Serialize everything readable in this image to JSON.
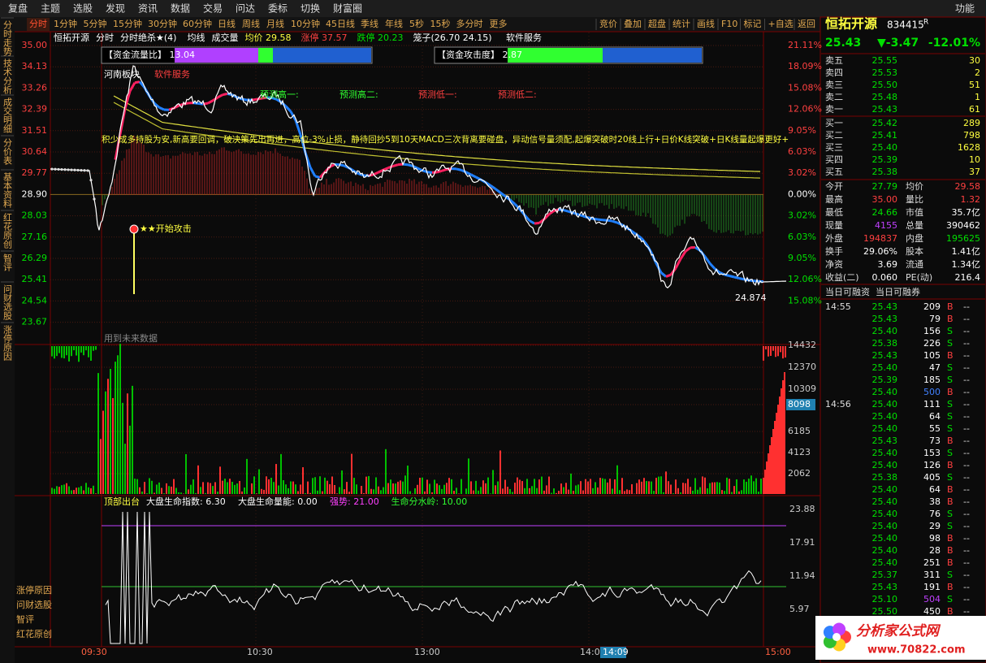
{
  "menu": [
    "复盘",
    "主题",
    "选股",
    "发现",
    "资讯",
    "数据",
    "交易",
    "问达",
    "委标",
    "切换",
    "财富圈"
  ],
  "menu_right": "功能",
  "periods": [
    "分时",
    "1分钟",
    "5分钟",
    "15分钟",
    "30分钟",
    "60分钟",
    "日线",
    "周线",
    "月线",
    "10分钟",
    "45日线",
    "季线",
    "年线",
    "5秒",
    "15秒",
    "多分时",
    "更多"
  ],
  "toolbar": [
    "竞价",
    "叠加",
    "超盘",
    "统计",
    "画线",
    "F10",
    "标记",
    "+自选",
    "返回"
  ],
  "sidebar": [
    "分时走势",
    "技术分析",
    "成交明细",
    "分价表",
    "基本资料",
    "红花原创",
    "智评",
    "问财选股",
    "涨停原因"
  ],
  "sidebar_bottom": [
    "涨停原因",
    "问财选股",
    "智评",
    "红花原创"
  ],
  "chart": {
    "header": [
      "恒拓开源",
      "分时",
      "分时绝杀★(4)",
      "均线",
      "成交量",
      "均价 29.58",
      "涨停 37.57",
      "跌停 20.23",
      "笼子(26.70 24.15)",
      "软件服务"
    ],
    "price_axis": [
      "35.00",
      "34.13",
      "33.26",
      "32.39",
      "31.51",
      "30.64",
      "29.77",
      "28.90",
      "28.03",
      "27.16",
      "26.29",
      "25.41",
      "24.54",
      "23.67"
    ],
    "percent_axis": [
      "21.11%",
      "18.09%",
      "15.08%",
      "12.06%",
      "9.05%",
      "6.03%",
      "3.02%",
      "0.00%",
      "3.02%",
      "6.03%",
      "9.05%",
      "12.06%",
      "15.08%"
    ],
    "flow_box": "【资金流量比】 13.04",
    "attack_box": "【资金攻击度】 2.87",
    "sector": "河南板块",
    "industry": "软件服务",
    "forecasts": [
      "预测高一:",
      "预测高二:",
      "预测低一:",
      "预测低二:"
    ],
    "strategy": "积少成多持股为安,新高要回调，破决策先出再进，高位-3%止损，静待回抄5到10天MACD三次背离要碰盘，异动信号量须配,起爆突破时20线上行+日价K线突破+日K线量起爆更好+",
    "attack": "★★开始攻击",
    "low_mark": "24.874",
    "volume_note": "用到未来数据",
    "volume_axis": [
      "14432",
      "12370",
      "10309",
      "8098",
      "6185",
      "4123",
      "2062"
    ],
    "indicator_header": [
      "顶部出台",
      "大盘生命指数: 6.30",
      "大盘生命量能: 0.00",
      "强势: 21.00",
      "生命分水岭: 10.00"
    ],
    "indicator_axis": [
      "23.88",
      "17.91",
      "11.94",
      "5.97"
    ],
    "times": [
      "09:30",
      "10:30",
      "13:00",
      "14:00",
      "14:09",
      "15:00"
    ]
  },
  "quote": {
    "name": "恒拓开源",
    "code": "834415",
    "flag": "R",
    "price": "25.43",
    "change": "▼-3.47",
    "change_pct": "-12.01%",
    "sell": [
      [
        "卖五",
        "25.55",
        "30"
      ],
      [
        "卖四",
        "25.53",
        "2"
      ],
      [
        "卖三",
        "25.50",
        "51"
      ],
      [
        "卖二",
        "25.48",
        "1"
      ],
      [
        "卖一",
        "25.43",
        "61"
      ]
    ],
    "buy": [
      [
        "买一",
        "25.42",
        "289"
      ],
      [
        "买二",
        "25.41",
        "798"
      ],
      [
        "买三",
        "25.40",
        "1628"
      ],
      [
        "买四",
        "25.39",
        "10"
      ],
      [
        "买五",
        "25.38",
        "37"
      ]
    ],
    "stats": [
      [
        {
          "label": "今开",
          "value": "27.79",
          "color": "#00e000"
        },
        {
          "label": "均价",
          "value": "29.58",
          "color": "#ff4040"
        }
      ],
      [
        {
          "label": "最高",
          "value": "35.00",
          "color": "#ff4040"
        },
        {
          "label": "量比",
          "value": "1.32",
          "color": "#ff4040"
        }
      ],
      [
        {
          "label": "最低",
          "value": "24.66",
          "color": "#00e000"
        },
        {
          "label": "市值",
          "value": "35.7亿",
          "color": "#ffffff"
        }
      ],
      [
        {
          "label": "现量",
          "value": "4155",
          "color": "#c040ff"
        },
        {
          "label": "总量",
          "value": "390462",
          "color": "#ffffff"
        }
      ],
      [
        {
          "label": "外盘",
          "value": "194837",
          "color": "#ff4040"
        },
        {
          "label": "内盘",
          "value": "195625",
          "color": "#00e000"
        }
      ],
      [
        {
          "label": "换手",
          "value": "29.06%",
          "color": "#ffffff"
        },
        {
          "label": "股本",
          "value": "1.41亿",
          "color": "#ffffff"
        }
      ],
      [
        {
          "label": "净资",
          "value": "3.69",
          "color": "#ffffff"
        },
        {
          "label": "流通",
          "value": "1.34亿",
          "color": "#ffffff"
        }
      ],
      [
        {
          "label": "收益(二)",
          "value": "0.060",
          "color": "#ffffff"
        },
        {
          "label": "PE(动)",
          "value": "216.4",
          "color": "#ffffff"
        }
      ]
    ],
    "finance": [
      "当日可融资",
      "当日可融券"
    ]
  },
  "ticks": [
    {
      "time": "14:55",
      "price": "25.43",
      "volume": "209",
      "side": "B",
      "flag": "--"
    },
    {
      "price": "25.43",
      "volume": "79",
      "side": "B",
      "flag": "--"
    },
    {
      "price": "25.40",
      "volume": "156",
      "side": "S",
      "flag": "--"
    },
    {
      "price": "25.38",
      "volume": "226",
      "side": "S",
      "flag": "--"
    },
    {
      "price": "25.43",
      "volume": "105",
      "side": "B",
      "flag": "--"
    },
    {
      "price": "25.40",
      "volume": "47",
      "side": "S",
      "flag": "--"
    },
    {
      "price": "25.39",
      "volume": "185",
      "side": "S",
      "flag": "--"
    },
    {
      "price": "25.40",
      "volume": "500",
      "side": "B",
      "flag": "--",
      "color": "#4080ff"
    },
    {
      "time": "14:56",
      "price": "25.40",
      "volume": "111",
      "side": "S",
      "flag": "--"
    },
    {
      "price": "25.40",
      "volume": "64",
      "side": "S",
      "flag": "--"
    },
    {
      "price": "25.40",
      "volume": "55",
      "side": "S",
      "flag": "--"
    },
    {
      "price": "25.43",
      "volume": "73",
      "side": "B",
      "flag": "--"
    },
    {
      "price": "25.40",
      "volume": "153",
      "side": "S",
      "flag": "--"
    },
    {
      "price": "25.40",
      "volume": "126",
      "side": "B",
      "flag": "--"
    },
    {
      "price": "25.38",
      "volume": "405",
      "side": "S",
      "flag": "--"
    },
    {
      "price": "25.40",
      "volume": "64",
      "side": "B",
      "flag": "--"
    },
    {
      "price": "25.40",
      "volume": "38",
      "side": "B",
      "flag": "--"
    },
    {
      "price": "25.40",
      "volume": "76",
      "side": "S",
      "flag": "--"
    },
    {
      "price": "25.40",
      "volume": "29",
      "side": "S",
      "flag": "--"
    },
    {
      "price": "25.40",
      "volume": "98",
      "side": "B",
      "flag": "--"
    },
    {
      "price": "25.40",
      "volume": "28",
      "side": "B",
      "flag": "--"
    },
    {
      "price": "25.40",
      "volume": "251",
      "side": "B",
      "flag": "--"
    },
    {
      "price": "25.37",
      "volume": "311",
      "side": "S",
      "flag": "--"
    },
    {
      "price": "25.43",
      "volume": "191",
      "side": "B",
      "flag": "--"
    },
    {
      "price": "25.10",
      "volume": "504",
      "side": "S",
      "flag": "--",
      "color": "#c040ff"
    },
    {
      "price": "25.50",
      "volume": "450",
      "side": "B",
      "flag": "--"
    }
  ],
  "watermark": {
    "name": "分析家公式网",
    "url": "www.70822.com"
  }
}
